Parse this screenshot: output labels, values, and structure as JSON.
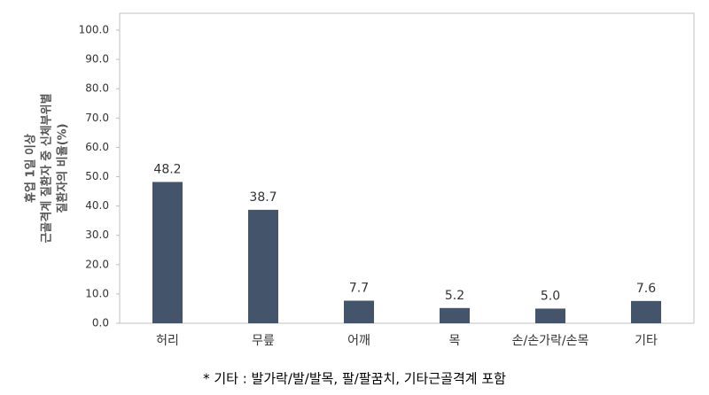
{
  "chart_data": {
    "type": "bar",
    "y_label": [
      "휴업 1일 이상",
      "근골격계 질환자 중 신체부위별",
      "질환자의 비율(%)"
    ],
    "categories": [
      "허리",
      "무릎",
      "어깨",
      "목",
      "손/손가락/손목",
      "기타"
    ],
    "values": [
      48.2,
      38.7,
      7.7,
      5.2,
      5.0,
      7.6
    ],
    "value_labels": [
      "48.2",
      "38.7",
      "7.7",
      "5.2",
      "5.0",
      "7.6"
    ],
    "color": "#44546a",
    "ylim": [
      0,
      100
    ],
    "yticks": [
      {
        "value": 0,
        "label": "0.0"
      },
      {
        "value": 10,
        "label": "10.0"
      },
      {
        "value": 20,
        "label": "20.0"
      },
      {
        "value": 30,
        "label": "30.0"
      },
      {
        "value": 40,
        "label": "40.0"
      },
      {
        "value": 50,
        "label": "50.0"
      },
      {
        "value": 60,
        "label": "60.0"
      },
      {
        "value": 70,
        "label": "70.0"
      },
      {
        "value": 80,
        "label": "80.0"
      },
      {
        "value": 90,
        "label": "90.0"
      },
      {
        "value": 100,
        "label": "100.0"
      }
    ],
    "footnote": "* 기타 : 발가락/발/발목, 팔/팔꿈치, 기타근골격계 포함"
  }
}
